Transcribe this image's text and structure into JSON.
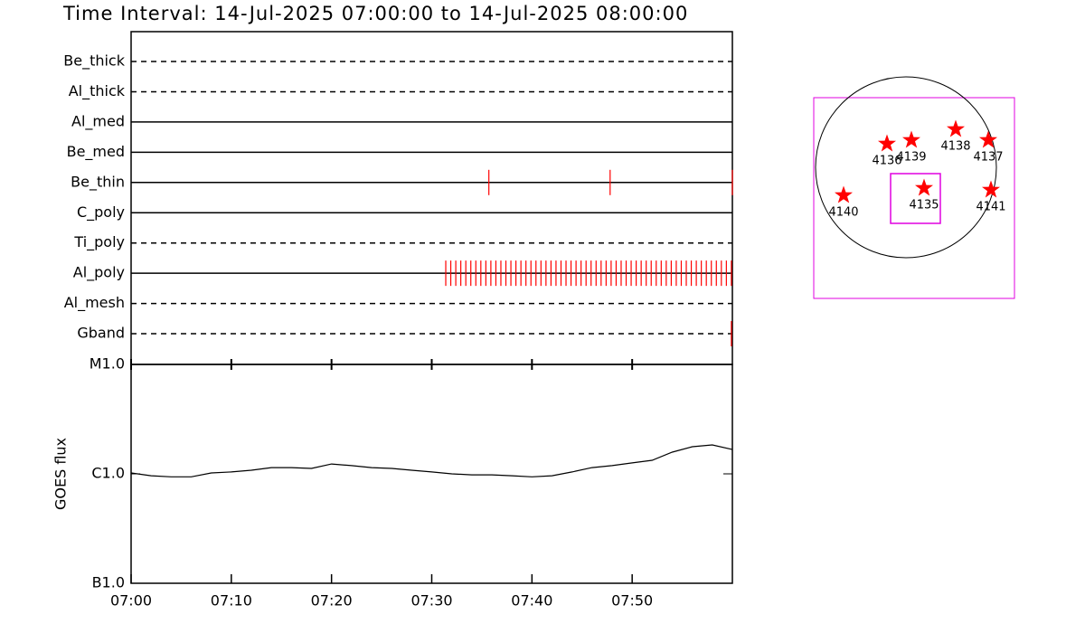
{
  "title": "Time Interval: 14-Jul-2025 07:00:00 to 14-Jul-2025 08:00:00",
  "chart_data": [
    {
      "type": "timeline",
      "categories": [
        "Be_thick",
        "Al_thick",
        "Al_med",
        "Be_med",
        "Be_thin",
        "C_poly",
        "Ti_poly",
        "Al_poly",
        "Al_mesh",
        "Gband"
      ],
      "line_styles": [
        "dashed",
        "dashed",
        "solid",
        "solid",
        "solid",
        "solid",
        "dashed",
        "solid",
        "dashed",
        "dashed"
      ],
      "events": [
        [],
        [],
        [],
        [],
        [
          35.7,
          47.8,
          60
        ],
        [],
        [],
        [
          31.4,
          31.9,
          32.4,
          32.9,
          33.4,
          33.9,
          34.4,
          34.9,
          35.4,
          35.9,
          36.4,
          36.9,
          37.4,
          37.9,
          38.4,
          38.9,
          39.4,
          39.9,
          40.4,
          40.9,
          41.4,
          41.9,
          42.4,
          42.9,
          43.4,
          43.9,
          44.4,
          44.9,
          45.4,
          45.9,
          46.4,
          46.9,
          47.4,
          47.9,
          48.4,
          48.9,
          49.4,
          49.9,
          50.4,
          50.9,
          51.4,
          51.9,
          52.4,
          52.9,
          53.4,
          53.9,
          54.4,
          54.9,
          55.4,
          55.9,
          56.4,
          56.9,
          57.4,
          57.9,
          58.4,
          58.9,
          59.4,
          59.9
        ],
        [],
        [
          59.9
        ]
      ],
      "color": "#ff0000",
      "xlim": [
        0,
        60
      ]
    },
    {
      "type": "line",
      "y_label": "GOES flux",
      "log_scale": true,
      "x": [
        0,
        2,
        4,
        6,
        8,
        10,
        12,
        14,
        16,
        18,
        20,
        22,
        24,
        26,
        28,
        30,
        32,
        34,
        36,
        38,
        40,
        42,
        44,
        46,
        48,
        50,
        52,
        54,
        56,
        58,
        60
      ],
      "values": [
        1.02e-06,
        9.6e-07,
        9.4e-07,
        9.4e-07,
        1.02e-06,
        1.04e-06,
        1.08e-06,
        1.14e-06,
        1.14e-06,
        1.12e-06,
        1.23e-06,
        1.19e-06,
        1.14e-06,
        1.12e-06,
        1.08e-06,
        1.04e-06,
        1e-06,
        9.8e-07,
        9.8e-07,
        9.6e-07,
        9.4e-07,
        9.6e-07,
        1.04e-06,
        1.14e-06,
        1.19e-06,
        1.26e-06,
        1.33e-06,
        1.58e-06,
        1.77e-06,
        1.84e-06,
        1.67e-06
      ],
      "color": "#000000",
      "xlim": [
        0,
        60
      ],
      "xticks": [
        {
          "value": 0,
          "label": "07:00"
        },
        {
          "value": 10,
          "label": "07:10"
        },
        {
          "value": 20,
          "label": "07:20"
        },
        {
          "value": 30,
          "label": "07:30"
        },
        {
          "value": 40,
          "label": "07:40"
        },
        {
          "value": 50,
          "label": "07:50"
        }
      ],
      "ylim": [
        1e-07,
        1e-05
      ],
      "yticks": [
        {
          "value": 1e-07,
          "label": "B1.0"
        },
        {
          "value": 1e-06,
          "label": "C1.0"
        },
        {
          "value": 1e-05,
          "label": "M1.0"
        }
      ]
    },
    {
      "type": "scatter",
      "labels": [
        "4136",
        "4139",
        "4138",
        "4137",
        "4135",
        "4141",
        "4140"
      ],
      "x": [
        -0.21,
        0.06,
        0.55,
        0.91,
        0.2,
        0.94,
        -0.69
      ],
      "y": [
        0.26,
        0.3,
        0.42,
        0.3,
        -0.23,
        -0.25,
        -0.31
      ],
      "color": "#ff0000",
      "xlim": [
        -1.02,
        1.2
      ],
      "ylim": [
        -1.45,
        0.77
      ]
    }
  ]
}
